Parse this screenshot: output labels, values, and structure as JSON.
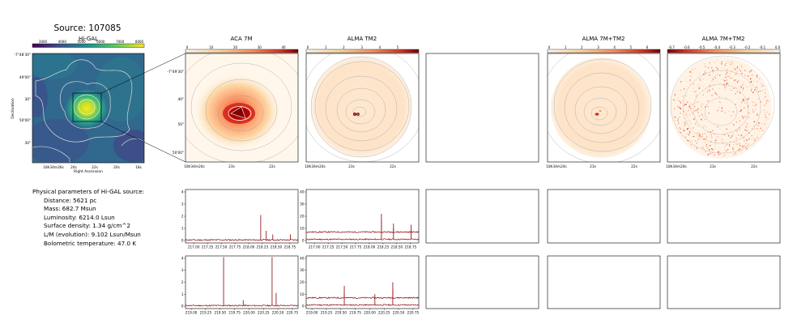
{
  "figure": {
    "title": "Source: 107085"
  },
  "panels": {
    "higal": {
      "title": "Hi-GAL",
      "colorbar_ticks": [
        "3000",
        "4000",
        "5000",
        "6000",
        "7000",
        "8000"
      ],
      "y_ticks": [
        "-7°48'30\"",
        "49'00\"",
        "30\"",
        "50'00\"",
        "30\""
      ],
      "x_ticks": [
        "18h34m26s",
        "24s",
        "22s",
        "20s",
        "18s"
      ],
      "xlabel": "Right Ascension",
      "ylabel": "Declination"
    },
    "aca7m": {
      "title": "ACA 7M",
      "colorbar_ticks": [
        "0",
        "10",
        "20",
        "30",
        "40"
      ],
      "y_ticks": [
        "-7°49'30\"",
        "40\"",
        "50\"",
        "50'00\""
      ],
      "x_ticks": [
        "18h34m24s",
        "23s",
        "22s"
      ]
    },
    "tm2": {
      "title": "ALMA TM2",
      "colorbar_ticks": [
        "0",
        "1",
        "2",
        "3",
        "4",
        "5"
      ],
      "x_ticks": [
        "18h34m24s",
        "23s",
        "22s"
      ]
    },
    "combined": {
      "title": "ALMA 7M+TM2",
      "colorbar_ticks": [
        "0",
        "1",
        "2",
        "3",
        "4",
        "5",
        "6"
      ],
      "x_ticks": [
        "18h34m24s",
        "23s",
        "22s"
      ]
    },
    "combined_neg": {
      "title": "ALMA 7M+TM2",
      "colorbar_ticks": [
        "-0.7",
        "-0.6",
        "-0.5",
        "-0.4",
        "-0.3",
        "-0.2",
        "-0.1",
        "0.0"
      ],
      "x_ticks": [
        "18h34m24s",
        "23s",
        "22s"
      ]
    }
  },
  "params": {
    "title": "Physical parameters of Hi-GAL source:",
    "distance": "Distance: 5621 pc",
    "mass": "Mass: 682.7 Msun",
    "luminosity": "Luminosity: 6214.0 Lsun",
    "surface_density": "Surface density: 1.34 g/cm^2",
    "lm": "L/M (evolution): 9.102 Lsun/Msun",
    "tbol": "Bolometric temperature: 47.0 K"
  },
  "colors": {
    "spectrum": "#8b0000",
    "contour": "#b4b4b4"
  },
  "chart_data": [
    {
      "type": "line",
      "panel": "spectrum-aca-lower-band",
      "xlim": [
        216.85,
        218.9
      ],
      "ylim": [
        -0.2,
        4.2
      ],
      "x_ticks": [
        "217.00",
        "217.25",
        "217.50",
        "217.75",
        "218.00",
        "218.25",
        "218.50",
        "218.75"
      ],
      "y_ticks": [
        "0",
        "1",
        "2",
        "3",
        "4"
      ],
      "baseline": 0.05,
      "lines": [
        {
          "x": 218.22,
          "y": 2.1
        },
        {
          "x": 218.32,
          "y": 0.8
        },
        {
          "x": 218.44,
          "y": 0.5
        },
        {
          "x": 218.76,
          "y": 0.5
        }
      ]
    },
    {
      "type": "line",
      "panel": "spectrum-tm2-lower-band",
      "xlim": [
        216.85,
        218.9
      ],
      "ylim": [
        -2,
        42
      ],
      "x_ticks": [
        "217.00",
        "217.25",
        "217.50",
        "217.75",
        "218.00",
        "218.25",
        "218.50",
        "218.75"
      ],
      "y_ticks": [
        "0",
        "10",
        "20",
        "30",
        "40"
      ],
      "traces": [
        {
          "baseline": 1,
          "lines": [
            {
              "x": 218.22,
              "y": 16
            },
            {
              "x": 218.44,
              "y": 10
            },
            {
              "x": 218.76,
              "y": 8
            }
          ]
        },
        {
          "baseline": 7,
          "lines": [
            {
              "x": 218.22,
              "y": 22
            },
            {
              "x": 218.44,
              "y": 14
            },
            {
              "x": 218.76,
              "y": 13
            }
          ]
        }
      ]
    },
    {
      "type": "line",
      "panel": "spectrum-aca-upper-band",
      "xlim": [
        218.9,
        220.85
      ],
      "ylim": [
        -0.2,
        4.2
      ],
      "x_ticks": [
        "219.00",
        "219.25",
        "219.50",
        "219.75",
        "220.00",
        "220.25",
        "220.50",
        "220.75"
      ],
      "y_ticks": [
        "0",
        "1",
        "2",
        "3",
        "4"
      ],
      "baseline": 0.05,
      "lines": [
        {
          "x": 219.56,
          "y": 4.1
        },
        {
          "x": 219.9,
          "y": 0.5
        },
        {
          "x": 220.4,
          "y": 4.1
        },
        {
          "x": 220.47,
          "y": 1.1
        }
      ]
    },
    {
      "type": "line",
      "panel": "spectrum-tm2-upper-band",
      "xlim": [
        218.9,
        220.85
      ],
      "ylim": [
        -2,
        42
      ],
      "x_ticks": [
        "219.00",
        "219.25",
        "219.50",
        "219.75",
        "220.00",
        "220.25",
        "220.50",
        "220.75"
      ],
      "y_ticks": [
        "0",
        "10",
        "20",
        "30",
        "40"
      ],
      "traces": [
        {
          "baseline": 1,
          "lines": [
            {
              "x": 219.56,
              "y": 10
            },
            {
              "x": 220.09,
              "y": 10
            },
            {
              "x": 220.4,
              "y": 14
            }
          ]
        },
        {
          "baseline": 7,
          "lines": [
            {
              "x": 219.56,
              "y": 17
            },
            {
              "x": 220.4,
              "y": 20
            }
          ]
        }
      ]
    }
  ]
}
